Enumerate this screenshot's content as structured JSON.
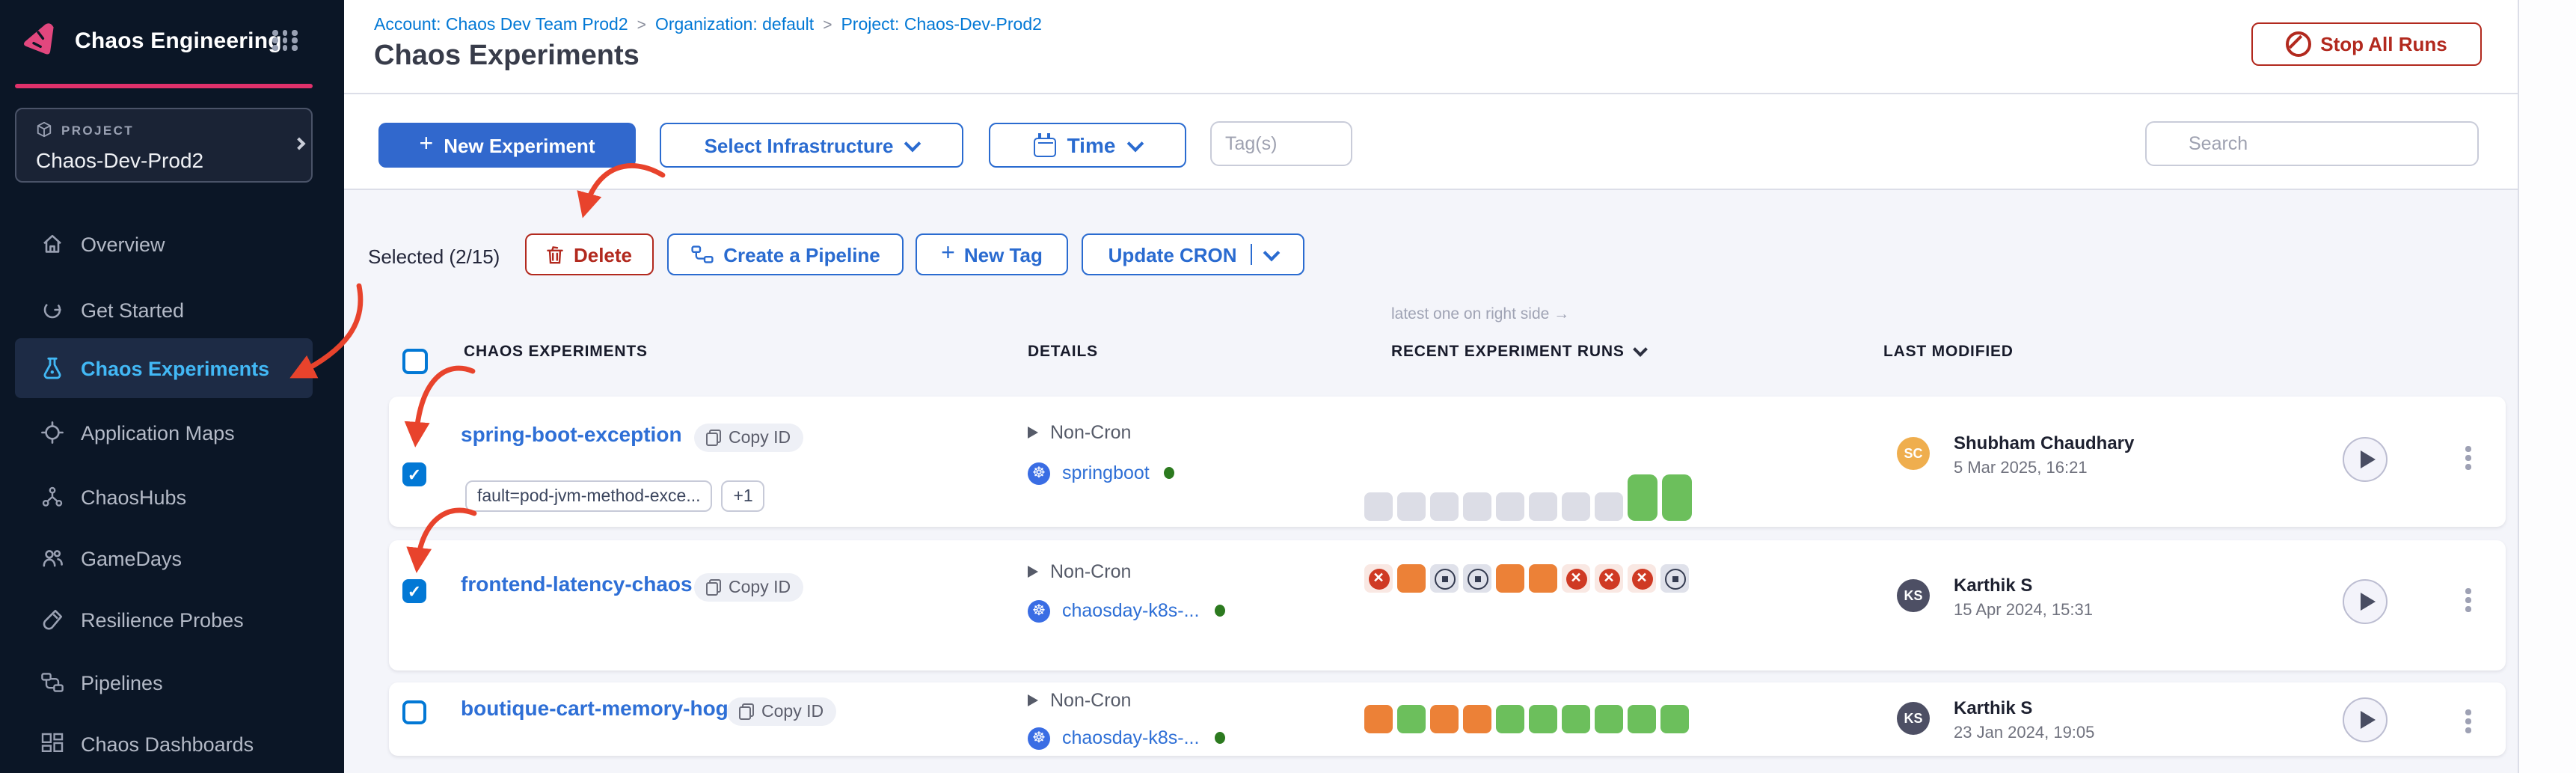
{
  "brand": {
    "name": "Chaos Engineering"
  },
  "project": {
    "label": "PROJECT",
    "name": "Chaos-Dev-Prod2"
  },
  "sidebar": {
    "items": [
      {
        "label": "Overview"
      },
      {
        "label": "Get Started"
      },
      {
        "label": "Chaos Experiments",
        "active": true
      },
      {
        "label": "Application Maps"
      },
      {
        "label": "ChaosHubs"
      },
      {
        "label": "GameDays"
      },
      {
        "label": "Resilience Probes"
      },
      {
        "label": "Pipelines"
      },
      {
        "label": "Chaos Dashboards"
      }
    ]
  },
  "breadcrumb": {
    "account": "Account: Chaos Dev Team Prod2",
    "separator": ">",
    "organization": "Organization: default",
    "project": "Project: Chaos-Dev-Prod2"
  },
  "page": {
    "title": "Chaos Experiments",
    "stop_all_runs": "Stop All Runs"
  },
  "toolbar": {
    "new_experiment": "New Experiment",
    "select_infrastructure": "Select Infrastructure",
    "time": "Time",
    "tags_placeholder": "Tag(s)",
    "search_placeholder": "Search"
  },
  "selection": {
    "summary": "Selected (2/15)",
    "delete": "Delete",
    "create_pipeline": "Create a Pipeline",
    "new_tag": "New Tag",
    "update_cron": "Update CRON"
  },
  "table": {
    "note": "latest one on right side →",
    "col_experiments": "CHAOS EXPERIMENTS",
    "col_details": "DETAILS",
    "col_runs": "RECENT EXPERIMENT RUNS",
    "col_modified": "LAST MODIFIED"
  },
  "icons": {
    "plus": "+",
    "check": "✓",
    "k8s_wheel": "☸"
  },
  "rows": [
    {
      "name": "spring-boot-exception",
      "copy_id": "Copy ID",
      "tag": "fault=pod-jvm-method-exce...",
      "tag_more": "+1",
      "schedule": "Non-Cron",
      "infra": "springboot",
      "checked": true,
      "runs": [
        "queued",
        "queued",
        "queued",
        "queued",
        "queued",
        "queued",
        "queued",
        "queued",
        "passed_big",
        "passed_big"
      ],
      "modified_by": "Shubham Chaudhary",
      "modified_at": "5 Mar 2025, 16:21",
      "avatar_initials": "SC",
      "avatar_color": "#efae4e"
    },
    {
      "name": "frontend-latency-chaos",
      "copy_id": "Copy ID",
      "schedule": "Non-Cron",
      "infra": "chaosday-k8s-...",
      "checked": true,
      "runs": [
        "failed",
        "running",
        "stopped",
        "stopped",
        "running",
        "running",
        "failed",
        "failed",
        "failed",
        "stopped"
      ],
      "modified_by": "Karthik S",
      "modified_at": "15 Apr 2024, 15:31",
      "avatar_initials": "KS",
      "avatar_color": "#4d4f64"
    },
    {
      "name": "boutique-cart-memory-hog",
      "copy_id": "Copy ID",
      "schedule": "Non-Cron",
      "infra": "chaosday-k8s-...",
      "checked": false,
      "runs": [
        "running",
        "passed",
        "running",
        "running",
        "passed",
        "passed",
        "passed",
        "passed",
        "passed",
        "passed"
      ],
      "modified_by": "Karthik S",
      "modified_at": "23 Jan 2024, 19:05",
      "avatar_initials": "KS",
      "avatar_color": "#4d4f64"
    }
  ],
  "colors": {
    "sidebar_bg": "#0b1626",
    "brand_pink": "#e0316b",
    "primary_blue": "#0278d5",
    "button_blue": "#3168cd",
    "link_blue": "#2e6fd6",
    "active_cyan": "#42b8f5",
    "danger_red": "#b2291e",
    "annotation_red": "#e8432c",
    "passed_green": "#6cbf5c",
    "running_orange": "#ec8137",
    "failed_red": "#cf3a24",
    "queued_gray": "#dcdde6",
    "content_bg": "#f4f5fa"
  }
}
